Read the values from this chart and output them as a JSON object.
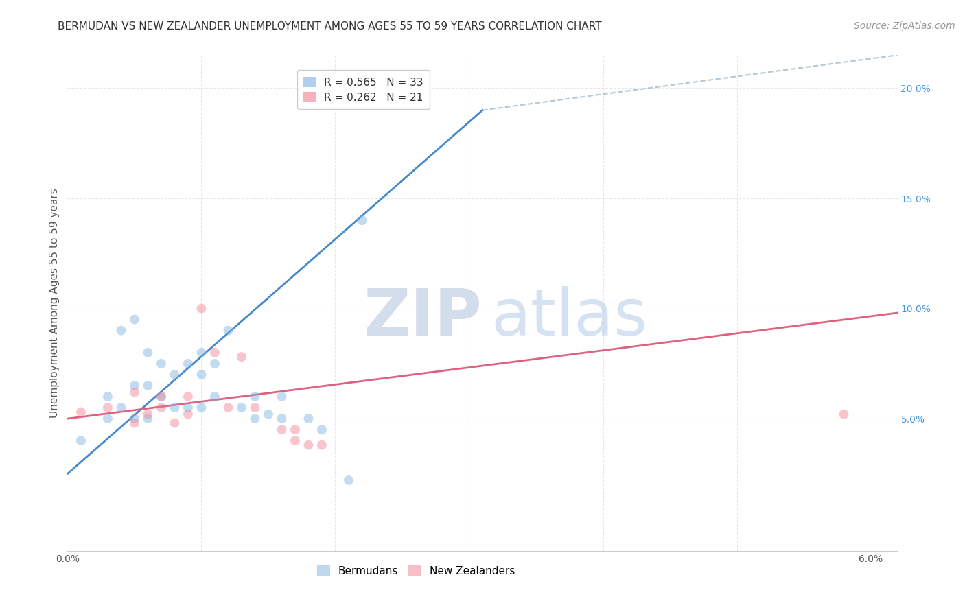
{
  "title": "BERMUDAN VS NEW ZEALANDER UNEMPLOYMENT AMONG AGES 55 TO 59 YEARS CORRELATION CHART",
  "source": "Source: ZipAtlas.com",
  "ylabel": "Unemployment Among Ages 55 to 59 years",
  "xlim": [
    0.0,
    0.062
  ],
  "ylim": [
    -0.01,
    0.215
  ],
  "yticks_right": [
    0.05,
    0.1,
    0.15,
    0.2
  ],
  "yticklabels_right": [
    "5.0%",
    "10.0%",
    "15.0%",
    "20.0%"
  ],
  "blue_color": "#7ab0e0",
  "pink_color": "#f08090",
  "trendline_blue_color": "#4488cc",
  "trendline_pink_color": "#e06080",
  "trendline_dashed_color": "#b0c8d8",
  "grid_color": "#e8e8e8",
  "background_color": "#ffffff",
  "blue_scatter_x": [
    0.001,
    0.003,
    0.003,
    0.004,
    0.004,
    0.005,
    0.005,
    0.005,
    0.006,
    0.006,
    0.006,
    0.007,
    0.007,
    0.008,
    0.008,
    0.009,
    0.009,
    0.01,
    0.01,
    0.01,
    0.011,
    0.011,
    0.012,
    0.013,
    0.014,
    0.014,
    0.015,
    0.016,
    0.016,
    0.018,
    0.019,
    0.021,
    0.022
  ],
  "blue_scatter_y": [
    0.04,
    0.05,
    0.06,
    0.055,
    0.09,
    0.05,
    0.065,
    0.095,
    0.05,
    0.065,
    0.08,
    0.06,
    0.075,
    0.055,
    0.07,
    0.055,
    0.075,
    0.055,
    0.07,
    0.08,
    0.06,
    0.075,
    0.09,
    0.055,
    0.05,
    0.06,
    0.052,
    0.05,
    0.06,
    0.05,
    0.045,
    0.022,
    0.14
  ],
  "pink_scatter_x": [
    0.001,
    0.003,
    0.005,
    0.005,
    0.006,
    0.007,
    0.007,
    0.008,
    0.009,
    0.009,
    0.01,
    0.011,
    0.012,
    0.013,
    0.014,
    0.016,
    0.017,
    0.017,
    0.018,
    0.019,
    0.058
  ],
  "pink_scatter_y": [
    0.053,
    0.055,
    0.048,
    0.062,
    0.052,
    0.055,
    0.06,
    0.048,
    0.052,
    0.06,
    0.1,
    0.08,
    0.055,
    0.078,
    0.055,
    0.045,
    0.045,
    0.04,
    0.038,
    0.038,
    0.052
  ],
  "blue_trend_x0": 0.0,
  "blue_trend_y0": 0.025,
  "blue_trend_x1": 0.031,
  "blue_trend_y1": 0.19,
  "pink_trend_x0": 0.0,
  "pink_trend_y0": 0.05,
  "pink_trend_x1": 0.062,
  "pink_trend_y1": 0.098,
  "dash_trend_x0": 0.031,
  "dash_trend_y0": 0.19,
  "dash_trend_x1": 0.062,
  "dash_trend_y1": 0.215,
  "title_fontsize": 11,
  "axis_label_fontsize": 11,
  "tick_fontsize": 10,
  "legend_fontsize": 11,
  "source_fontsize": 10,
  "scatter_size": 100,
  "scatter_alpha": 0.45
}
